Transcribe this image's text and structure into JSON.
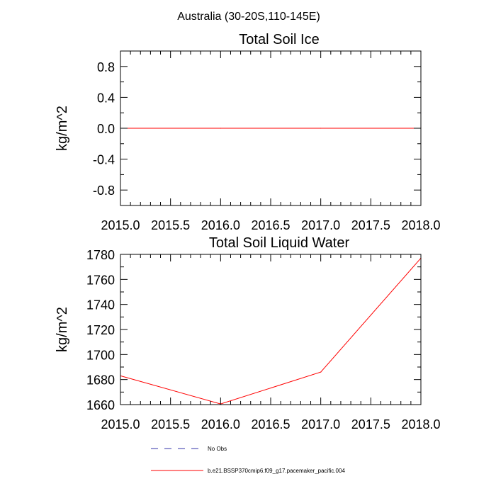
{
  "figure": {
    "suptitle": "Australia (30-20S,110-145E)"
  },
  "chart_data": [
    {
      "type": "line",
      "title": "Total Soil Ice",
      "ylabel": "kg/m^2",
      "xlim": [
        2015.0,
        2018.0
      ],
      "ylim": [
        -1.0,
        1.0
      ],
      "x_ticks": [
        "2015.0",
        "2015.5",
        "2016.0",
        "2016.5",
        "2017.0",
        "2017.5",
        "2018.0"
      ],
      "y_ticks": [
        "0.8",
        "0.4",
        "0.0",
        "-0.4",
        "-0.8"
      ],
      "y_tick_values": [
        0.8,
        0.4,
        0.0,
        -0.4,
        -0.8
      ],
      "grid": false,
      "series": [
        {
          "name": "b.e21.BSSP370cmip6.f09_g17.pacemaker_pacific.004",
          "color": "#ff0000",
          "x": [
            2015,
            2016,
            2017,
            2018
          ],
          "values": [
            0,
            0,
            0,
            0
          ]
        }
      ]
    },
    {
      "type": "line",
      "title": "Total Soil Liquid Water",
      "ylabel": "kg/m^2",
      "xlim": [
        2015.0,
        2018.0
      ],
      "ylim": [
        1660,
        1780
      ],
      "x_ticks": [
        "2015.0",
        "2015.5",
        "2016.0",
        "2016.5",
        "2017.0",
        "2017.5",
        "2018.0"
      ],
      "y_ticks": [
        "1780",
        "1760",
        "1740",
        "1720",
        "1700",
        "1680",
        "1660"
      ],
      "y_tick_values": [
        1780,
        1760,
        1740,
        1720,
        1700,
        1680,
        1660
      ],
      "grid": false,
      "series": [
        {
          "name": "b.e21.BSSP370cmip6.f09_g17.pacemaker_pacific.004",
          "color": "#ff0000",
          "x": [
            2015,
            2016,
            2017,
            2018
          ],
          "values": [
            1683,
            1660.5,
            1686,
            1777
          ]
        }
      ]
    }
  ],
  "legend": {
    "placement": "bottom",
    "items": [
      {
        "label": "No Obs",
        "color": "#3333aa",
        "style": "dashed"
      },
      {
        "label": "b.e21.BSSP370cmip6.f09_g17.pacemaker_pacific.004",
        "color": "#ff0000",
        "style": "solid"
      }
    ]
  }
}
